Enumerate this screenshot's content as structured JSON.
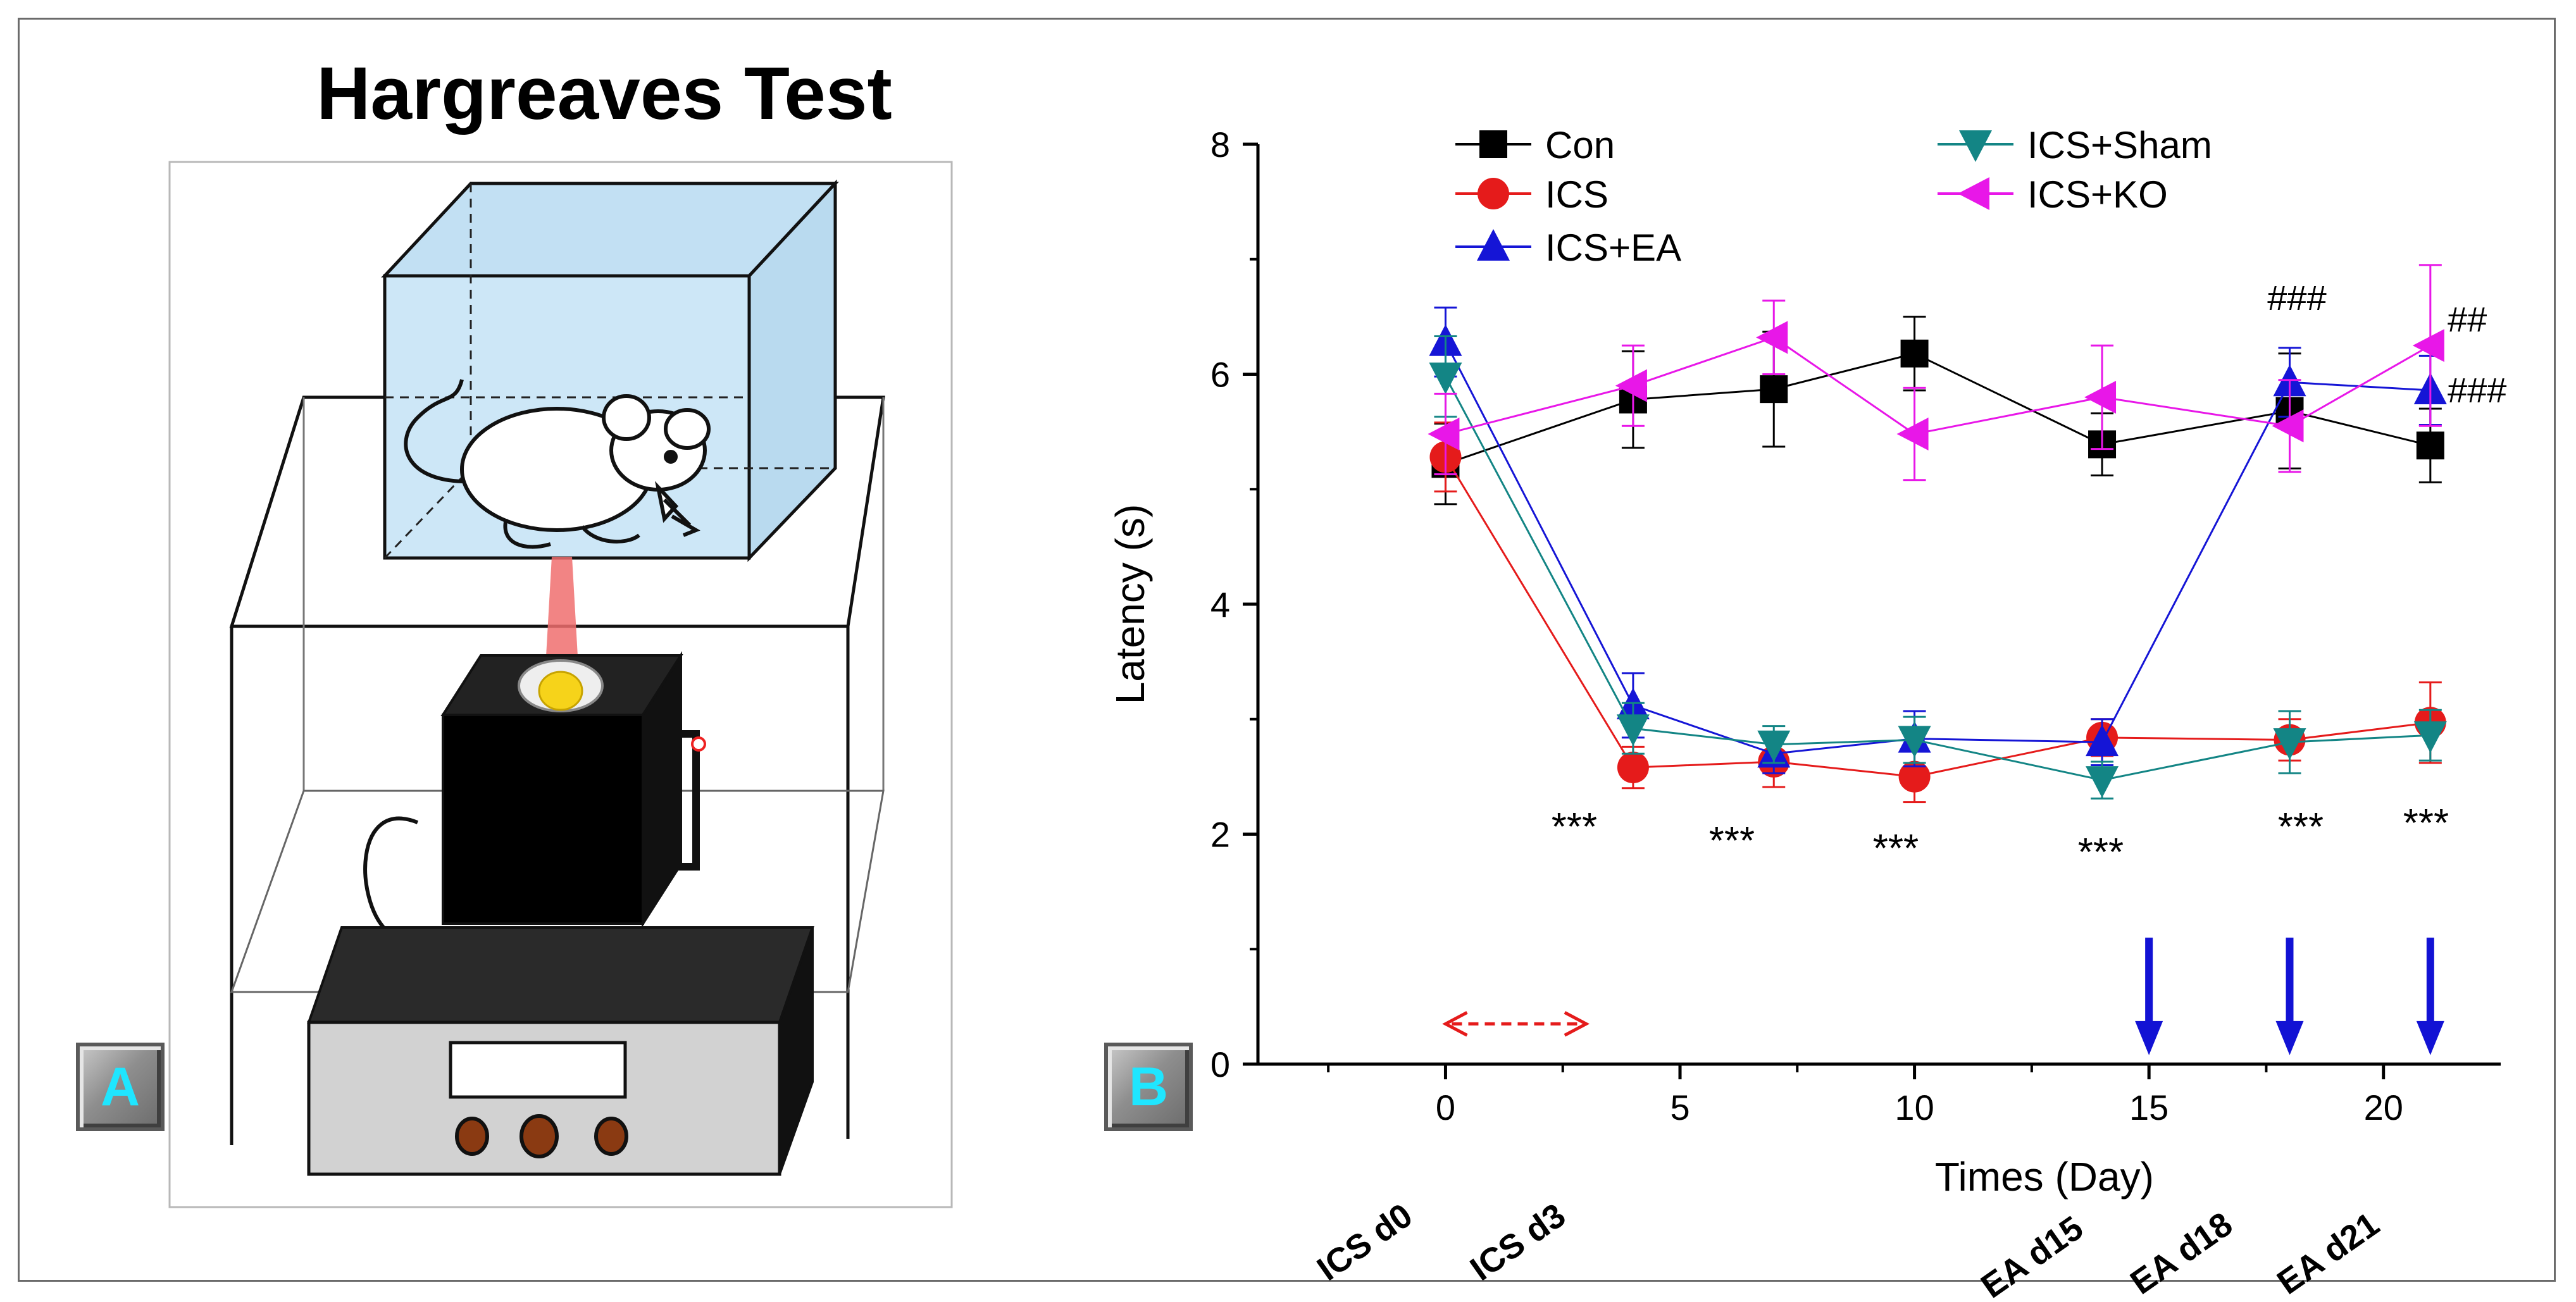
{
  "panel_a": {
    "title": "Hargreaves Test",
    "badge": "A",
    "illustration": [
      "glass-enclosure",
      "mouse",
      "heat-beam",
      "heat-source-box",
      "control-unit"
    ]
  },
  "panel_b": {
    "badge": "B",
    "markers": {
      "icsd3": "***",
      "icsd7": "***",
      "icsd10": "***",
      "icsd14": "***",
      "ead18": "***",
      "ead21": "***",
      "hash_ko_d18": "###",
      "hash_ko_d21": "##",
      "hash_ea_d21": "###"
    },
    "day_labels": [
      "ICS d0",
      "ICS d3",
      "EA d15",
      "EA d18",
      "EA d21"
    ]
  },
  "chart_data": {
    "type": "line",
    "title": "",
    "xlabel": "Times (Day)",
    "ylabel": "Latency (s)",
    "xlim": [
      -4,
      22.5
    ],
    "ylim": [
      0,
      8
    ],
    "xticks": [
      0,
      5,
      10,
      15,
      20
    ],
    "yticks": [
      0,
      2,
      4,
      6,
      8
    ],
    "x": [
      0,
      4,
      7,
      10,
      14,
      18,
      21
    ],
    "series": [
      {
        "name": "Con",
        "color": "#000000",
        "marker": "square",
        "values": [
          5.22,
          5.78,
          5.87,
          6.18,
          5.39,
          5.68,
          5.38
        ],
        "err": [
          0.35,
          0.42,
          0.5,
          0.32,
          0.27,
          0.5,
          0.32
        ]
      },
      {
        "name": "ICS",
        "color": "#e51b1b",
        "marker": "circle",
        "values": [
          5.28,
          2.58,
          2.63,
          2.5,
          2.84,
          2.82,
          2.97
        ],
        "err": [
          0.3,
          0.18,
          0.22,
          0.22,
          0.16,
          0.18,
          0.35
        ]
      },
      {
        "name": "ICS+EA",
        "color": "#1515d6",
        "marker": "triangle-up",
        "values": [
          6.28,
          3.12,
          2.7,
          2.83,
          2.8,
          5.93,
          5.86
        ],
        "err": [
          0.3,
          0.28,
          0.17,
          0.24,
          0.2,
          0.3,
          0.3
        ]
      },
      {
        "name": "ICS+Sham",
        "color": "#138585",
        "marker": "triangle-down",
        "values": [
          5.98,
          2.92,
          2.78,
          2.82,
          2.47,
          2.8,
          2.86
        ],
        "err": [
          0.35,
          0.22,
          0.16,
          0.2,
          0.16,
          0.27,
          0.22
        ]
      },
      {
        "name": "ICS+KO",
        "color": "#e817e8",
        "marker": "triangle-left",
        "values": [
          5.48,
          5.9,
          6.32,
          5.48,
          5.8,
          5.55,
          6.25
        ],
        "err": [
          0.35,
          0.35,
          0.32,
          0.4,
          0.45,
          0.4,
          0.7
        ]
      }
    ],
    "legend": [
      "Con",
      "ICS",
      "ICS+EA",
      "ICS+Sham",
      "ICS+KO"
    ],
    "annotations": {
      "ics_period_arrow": [
        0,
        3
      ],
      "ea_arrows_at": [
        15,
        18,
        21
      ]
    }
  }
}
